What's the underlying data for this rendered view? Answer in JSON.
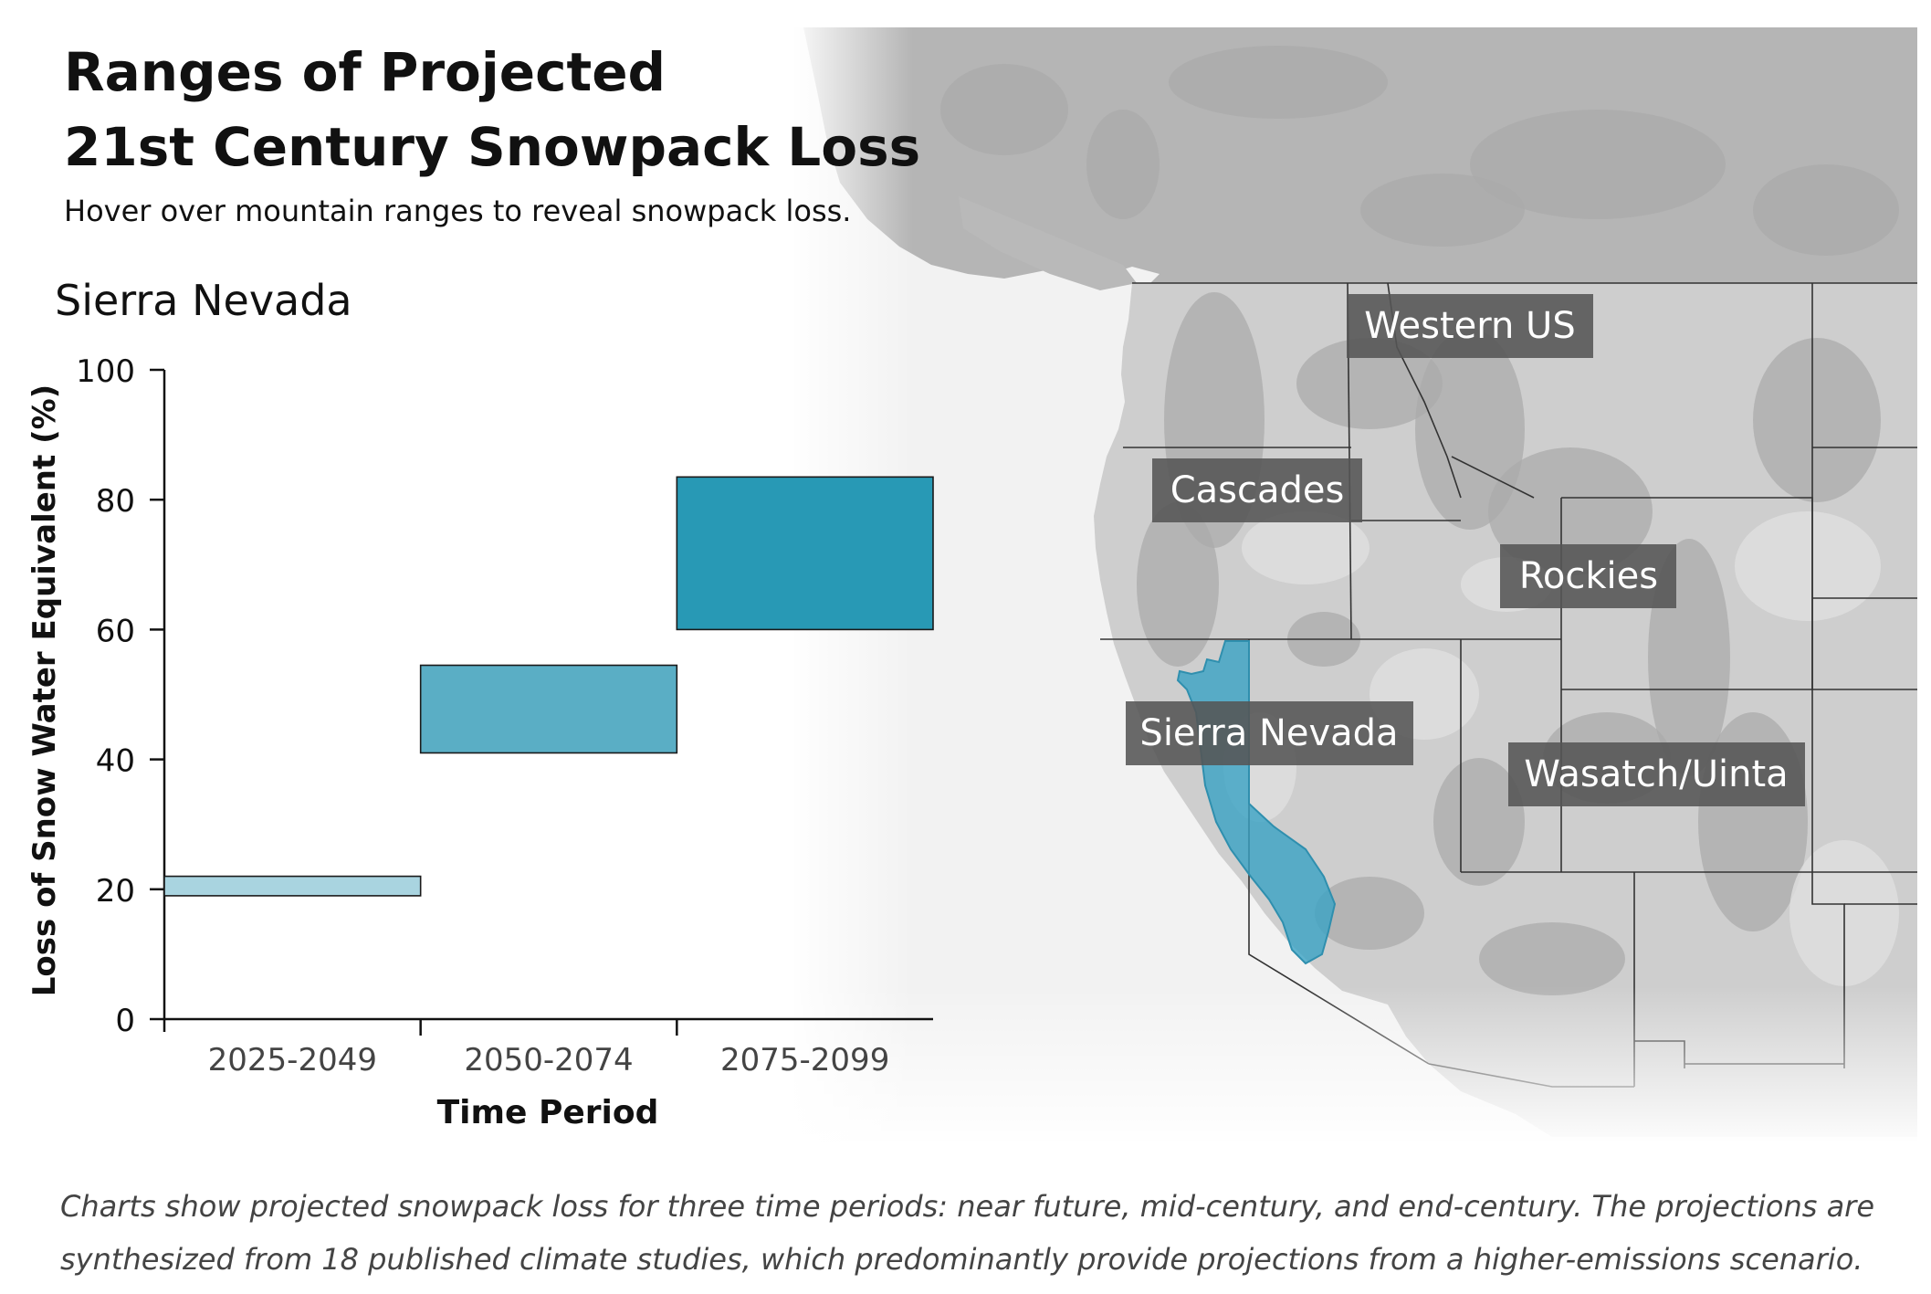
{
  "header": {
    "title_line1": "Ranges of Projected",
    "title_line2": "21st Century Snowpack Loss",
    "subtitle": "Hover over mountain ranges to reveal snowpack loss."
  },
  "chart_data": {
    "type": "bar",
    "title": "Sierra Nevada",
    "xlabel": "Time Period",
    "ylabel": "Loss of Snow Water Equivalent (%)",
    "ylim": [
      0,
      100
    ],
    "yticks": [
      0,
      20,
      40,
      60,
      80,
      100
    ],
    "grid": false,
    "categories": [
      "2025-2049",
      "2050-2074",
      "2075-2099"
    ],
    "ranges": [
      {
        "category": "2025-2049",
        "low": 19,
        "high": 22,
        "color": "#a9d4e0"
      },
      {
        "category": "2050-2074",
        "low": 41,
        "high": 54.5,
        "color": "#5aaec5"
      },
      {
        "category": "2075-2099",
        "low": 60,
        "high": 83.5,
        "color": "#2899b5"
      }
    ]
  },
  "map": {
    "regions": [
      {
        "name": "Western US",
        "interactable": true
      },
      {
        "name": "Cascades",
        "interactable": true
      },
      {
        "name": "Rockies",
        "interactable": true
      },
      {
        "name": "Sierra Nevada",
        "interactable": true,
        "selected": true
      },
      {
        "name": "Wasatch/Uinta",
        "interactable": true
      }
    ],
    "highlight_color": "#3aa3c4"
  },
  "caption": "Charts show projected snowpack loss for three time periods: near future, mid-century, and end-century. The projections are synthesized from 18 published climate studies, which predominantly provide projections from a higher-emissions scenario."
}
